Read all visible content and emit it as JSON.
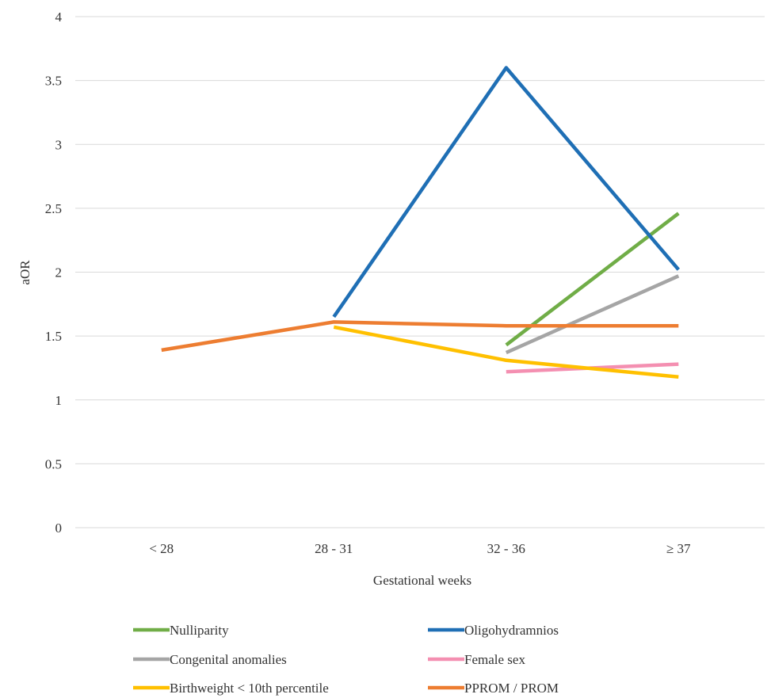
{
  "chart_data": {
    "type": "line",
    "title": "",
    "xlabel": "Gestational weeks",
    "ylabel": "aOR",
    "categories": [
      "< 28",
      "28 - 31",
      "32 - 36",
      "≥ 37"
    ],
    "ylim": [
      0,
      4
    ],
    "yticks": [
      0,
      0.5,
      1,
      1.5,
      2,
      2.5,
      3,
      3.5,
      4
    ],
    "ytick_labels": [
      "0",
      "0.5",
      "1",
      "1.5",
      "2",
      "2.5",
      "3",
      "3.5",
      "4"
    ],
    "grid": "horizontal",
    "legend_position": "bottom",
    "series": [
      {
        "name": "Nulliparity",
        "color": "#70AD47",
        "values": [
          null,
          null,
          1.43,
          2.46
        ]
      },
      {
        "name": "Oligohydramnios",
        "color": "#1F6FB5",
        "values": [
          null,
          1.65,
          3.6,
          2.02
        ]
      },
      {
        "name": "Congenital anomalies",
        "color": "#A5A5A5",
        "values": [
          null,
          null,
          1.37,
          1.97
        ]
      },
      {
        "name": "Female sex",
        "color": "#F48FB1",
        "values": [
          null,
          null,
          1.22,
          1.28
        ]
      },
      {
        "name": "Birthweight < 10th percentile",
        "color": "#FFC000",
        "values": [
          null,
          1.57,
          1.31,
          1.18
        ]
      },
      {
        "name": "PPROM / PROM",
        "color": "#ED7D31",
        "values": [
          1.39,
          1.61,
          1.58,
          1.58
        ]
      }
    ]
  }
}
